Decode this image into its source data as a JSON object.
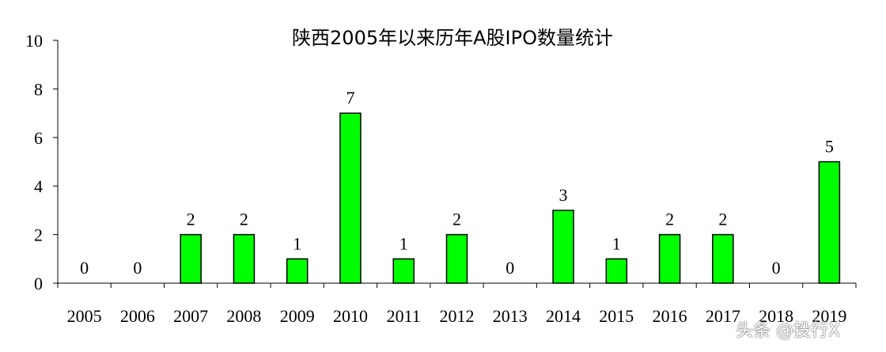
{
  "chart_data": {
    "type": "bar",
    "title": "陕西2005年以来历年A股IPO数量统计",
    "xlabel": "",
    "ylabel": "",
    "categories": [
      "2005",
      "2006",
      "2007",
      "2008",
      "2009",
      "2010",
      "2011",
      "2012",
      "2013",
      "2014",
      "2015",
      "2016",
      "2017",
      "2018",
      "2019"
    ],
    "values": [
      0,
      0,
      2,
      2,
      1,
      7,
      1,
      2,
      0,
      3,
      1,
      2,
      2,
      0,
      5
    ],
    "ylim": [
      0,
      10
    ],
    "yticks": [
      0,
      2,
      4,
      6,
      8,
      10
    ],
    "data_labels": true,
    "grid": false,
    "legend": "none",
    "colors": {
      "bar_fill": "#00FF00",
      "bar_stroke": "#000000",
      "axis": "#000000"
    }
  },
  "watermark": {
    "text": "头条 @投行X"
  }
}
